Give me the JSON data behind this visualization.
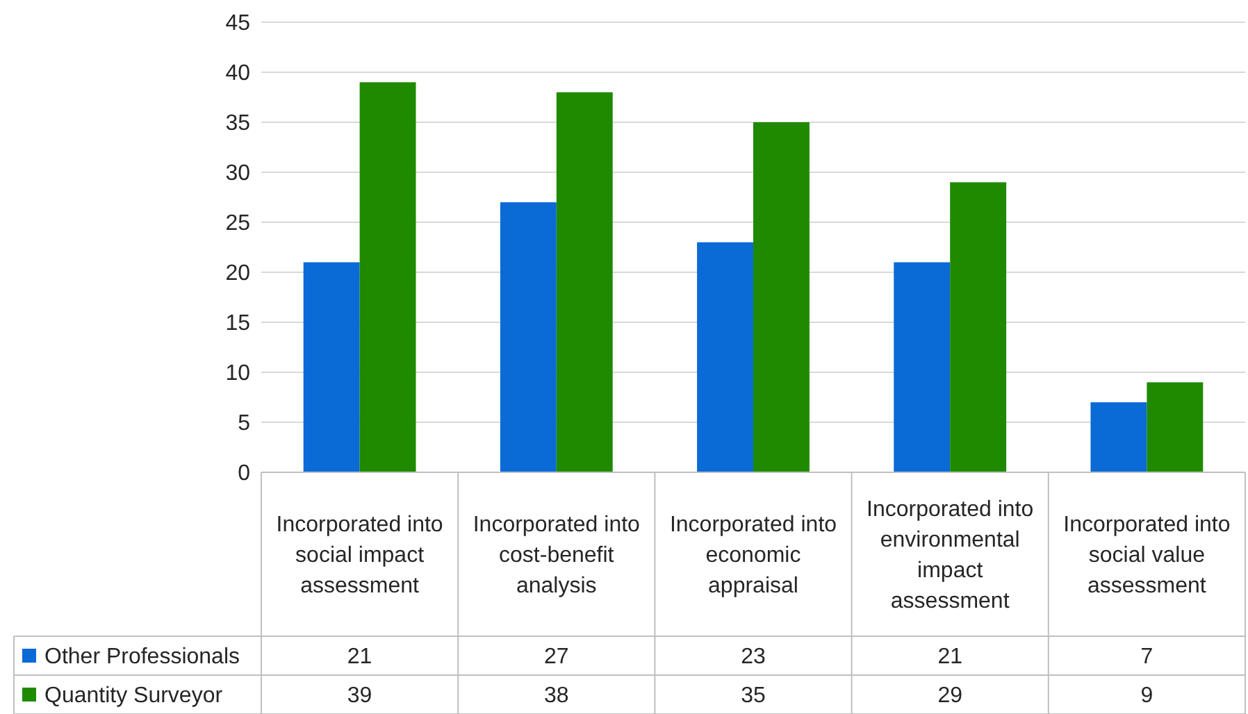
{
  "chart_data": {
    "type": "bar",
    "categories": [
      "Incorporated into social impact assessment",
      "Incorporated into cost-benefit analysis",
      "Incorporated into economic appraisal",
      "Incorporated into environmental impact assessment",
      "Incorporated into social value assessment"
    ],
    "series": [
      {
        "name": "Other Professionals",
        "color": "#0a6ad6",
        "values": [
          21,
          27,
          23,
          21,
          7
        ]
      },
      {
        "name": "Quantity Surveyor",
        "color": "#1f8a00",
        "values": [
          39,
          38,
          35,
          29,
          9
        ]
      }
    ],
    "ylim": [
      0,
      45
    ],
    "yticks": [
      0,
      5,
      10,
      15,
      20,
      25,
      30,
      35,
      40,
      45
    ],
    "grid": "y",
    "legend": "bottom",
    "data_labels": true
  }
}
